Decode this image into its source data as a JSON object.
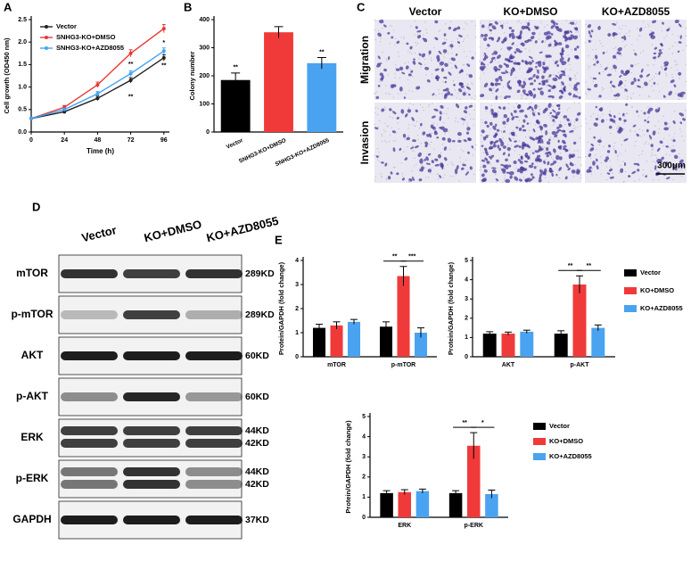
{
  "panel_labels": [
    "A",
    "B",
    "C",
    "D",
    "E"
  ],
  "chart_data": [
    {
      "type": "line",
      "xlabel": "Time (h)",
      "ylabel": "Cell growth (OD450 nm)",
      "x": [
        0,
        24,
        48,
        72,
        96
      ],
      "xlim": [
        0,
        100
      ],
      "xticks": [
        0,
        24,
        48,
        72,
        96
      ],
      "ylim": [
        0,
        2.5
      ],
      "yticks": [
        {
          "value": 0,
          "label": "0.0"
        },
        0.5,
        {
          "value": 1,
          "label": "1.0"
        },
        1.5,
        {
          "value": 2,
          "label": "2.0"
        },
        2.5
      ],
      "legend": "upper left",
      "series": [
        {
          "name": "Vector",
          "color": "#222222",
          "values": [
            0.3,
            0.45,
            0.75,
            1.15,
            1.65
          ],
          "errors": [
            0.02,
            0.03,
            0.05,
            0.06,
            0.07
          ]
        },
        {
          "name": "SNHG3-KO+DMSO",
          "color": "#e53935",
          "values": [
            0.3,
            0.55,
            1.05,
            1.75,
            2.3
          ],
          "errors": [
            0.02,
            0.04,
            0.06,
            0.08,
            0.09
          ]
        },
        {
          "name": "SNHG3-KO+AZD8055",
          "color": "#42a5f5",
          "values": [
            0.3,
            0.5,
            0.85,
            1.3,
            1.8
          ],
          "errors": [
            0.02,
            0.03,
            0.05,
            0.06,
            0.07
          ]
        }
      ],
      "annotations": [
        "**",
        "**",
        "*",
        "**"
      ]
    },
    {
      "type": "bar",
      "ylabel": "Colony number",
      "categories": [
        "Vector",
        "SNHG3-KO+DMSO",
        "SNHG3-KO+AZD8055"
      ],
      "values": [
        185,
        355,
        245
      ],
      "errors": [
        25,
        20,
        20
      ],
      "colors": [
        "#000000",
        "#f03a3a",
        "#4aa3f0"
      ],
      "ylim": [
        0,
        400
      ],
      "yticks": [
        0,
        100,
        200,
        300,
        400
      ],
      "annotations": [
        "**",
        "**"
      ]
    },
    {
      "type": "bar",
      "ylabel": "Protein/GAPDH (fold change)",
      "categories": [
        "mTOR",
        "p-mTOR"
      ],
      "ylim": [
        0,
        4
      ],
      "yticks": [
        0,
        1,
        2,
        3,
        4
      ],
      "legend": "right",
      "series": [
        {
          "name": "Vector",
          "color": "#000000",
          "values": [
            1.2,
            1.25
          ],
          "errors": [
            0.15,
            0.2
          ]
        },
        {
          "name": "KO+DMSO",
          "color": "#f03a3a",
          "values": [
            1.3,
            3.35
          ],
          "errors": [
            0.15,
            0.4
          ]
        },
        {
          "name": "KO+AZD8055",
          "color": "#4aa3f0",
          "values": [
            1.45,
            1.0
          ],
          "errors": [
            0.1,
            0.2
          ]
        }
      ],
      "annotations": [
        "**",
        "***"
      ]
    },
    {
      "type": "bar",
      "ylabel": "Protein/GAPDH (fold change)",
      "categories": [
        "AKT",
        "p-AKT"
      ],
      "ylim": [
        0,
        5
      ],
      "yticks": [
        0,
        1,
        2,
        3,
        4,
        5
      ],
      "series": [
        {
          "color": "#000000",
          "values": [
            1.2,
            1.2
          ],
          "errors": [
            0.1,
            0.15
          ]
        },
        {
          "color": "#f03a3a",
          "values": [
            1.2,
            3.75
          ],
          "errors": [
            0.08,
            0.45
          ]
        },
        {
          "color": "#4aa3f0",
          "values": [
            1.3,
            1.5
          ],
          "errors": [
            0.08,
            0.15
          ]
        }
      ],
      "annotations": [
        "**",
        "**"
      ]
    },
    {
      "type": "bar",
      "ylabel": "Protein/GAPDH (fold change)",
      "categories": [
        "ERK",
        "p-ERK"
      ],
      "ylim": [
        0,
        5
      ],
      "yticks": [
        0,
        1,
        2,
        3,
        4,
        5
      ],
      "legend": "right",
      "series": [
        {
          "name": "Vector",
          "color": "#000000",
          "values": [
            1.2,
            1.2
          ],
          "errors": [
            0.12,
            0.12
          ]
        },
        {
          "name": "KO+DMSO",
          "color": "#f03a3a",
          "values": [
            1.25,
            3.55
          ],
          "errors": [
            0.12,
            0.65
          ]
        },
        {
          "name": "KO+AZD8055",
          "color": "#4aa3f0",
          "values": [
            1.3,
            1.15
          ],
          "errors": [
            0.1,
            0.2
          ]
        }
      ],
      "annotations": [
        "**",
        "*"
      ]
    }
  ],
  "migration_panel": {
    "columns": [
      "Vector",
      "KO+DMSO",
      "KO+AZD8055"
    ],
    "rows": [
      "Migration",
      "Invasion"
    ],
    "scale_bar": "300μm"
  },
  "western_blot": {
    "columns": [
      "Vector",
      "KO+DMSO",
      "KO+AZD8055"
    ],
    "rows": [
      {
        "protein": "mTOR",
        "sizes": [
          "289KD"
        ]
      },
      {
        "protein": "p-mTOR",
        "sizes": [
          "289KD"
        ]
      },
      {
        "protein": "AKT",
        "sizes": [
          "60KD"
        ]
      },
      {
        "protein": "p-AKT",
        "sizes": [
          "60KD"
        ]
      },
      {
        "protein": "ERK",
        "sizes": [
          "44KD",
          "42KD"
        ]
      },
      {
        "protein": "p-ERK",
        "sizes": [
          "44KD",
          "42KD"
        ]
      },
      {
        "protein": "GAPDH",
        "sizes": [
          "37KD"
        ]
      }
    ]
  }
}
